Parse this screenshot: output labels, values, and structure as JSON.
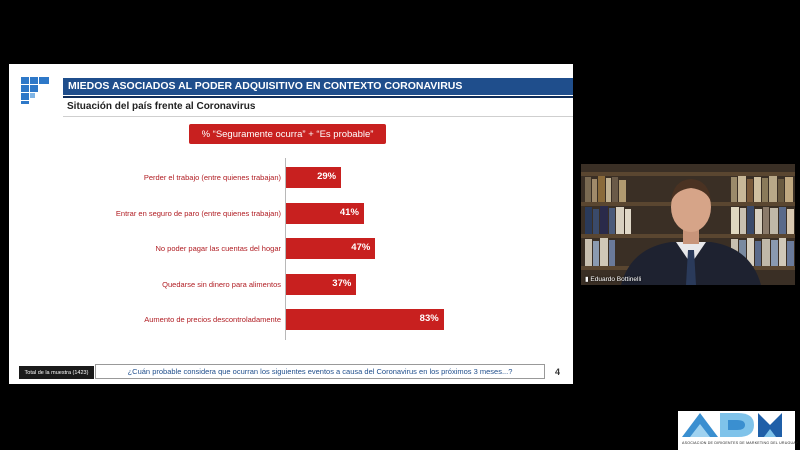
{
  "header": {
    "title": "MIEDOS ASOCIADOS AL PODER ADQUISITIVO EN CONTEXTO CORONAVIRUS",
    "subtitle": "Situación del país frente al Coronavirus"
  },
  "chart_data": {
    "type": "bar",
    "orientation": "horizontal",
    "title": "% “Seguramente ocurra” + “Es probable”",
    "categories": [
      "Perder el trabajo (entre quienes trabajan)",
      "Entrar en seguro de paro (entre quienes trabajan)",
      "No poder pagar las cuentas del hogar",
      "Quedarse sin dinero para alimentos",
      "Aumento de precios descontroladamente"
    ],
    "values": [
      29,
      41,
      47,
      37,
      83
    ],
    "value_labels": [
      "29%",
      "41%",
      "47%",
      "37%",
      "83%"
    ],
    "xlim": [
      0,
      100
    ],
    "bar_color": "#c8201f",
    "label_color": "#b01c22"
  },
  "footer": {
    "sample": "Total de la muestra (1423)",
    "question": "¿Cuán probable considera que ocurran los siguientes eventos a causa del Coronavirus en los próximos 3 meses...?",
    "page": "4"
  },
  "webcam": {
    "participant_name": "Eduardo Bottinelli",
    "icon": "signal-bars-icon"
  },
  "logo": {
    "brand": "ADM",
    "caption": "ASOCIACION DE DIRIGENTES DE MARKETING DEL URUGUAY",
    "colors": [
      "#3a8fd0",
      "#7fc3ea",
      "#1f5fa8"
    ]
  },
  "colors": {
    "title_bar": "#1f4e8c",
    "accent_red": "#c8201f"
  }
}
